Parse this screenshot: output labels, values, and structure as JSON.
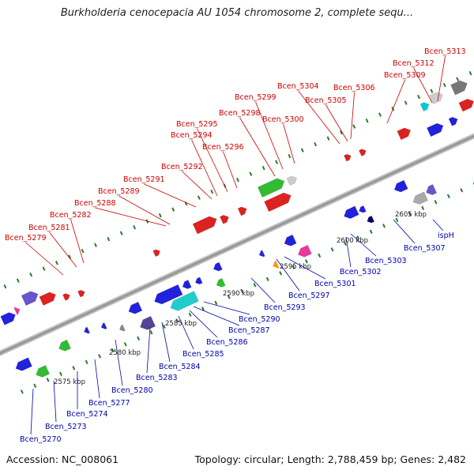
{
  "title": "Burkholderia cenocepacia AU 1054 chromosome 2, complete sequ...",
  "footer": {
    "accession": "Accession: NC_008061",
    "summary": "Topology: circular; Length: 2,788,459 bp; Genes: 2,482"
  },
  "colors": {
    "upper_label": "#cc0000",
    "lower_label": "#0000aa",
    "backbone": "#9a9a9a",
    "tick": "#2a7a2a"
  },
  "scale_labels": [
    "2575 kbp",
    "2580 kbp",
    "2585 kbp",
    "2590 kbp",
    "2595 kbp",
    "2600 kbp",
    "2605 kbp"
  ],
  "upper_labels": [
    "Bcen_5279",
    "Bcen_5281",
    "Bcen_5282",
    "Bcen_5288",
    "Bcen_5289",
    "Bcen_5291",
    "Bcen_5292",
    "Bcen_5294",
    "Bcen_5295",
    "Bcen_5296",
    "Bcen_5298",
    "Bcen_5299",
    "Bcen_5300",
    "Bcen_5304",
    "Bcen_5305",
    "Bcen_5306",
    "Bcen_5309",
    "Bcen_5312",
    "Bcen_5313"
  ],
  "lower_labels": [
    "Bcen_5270",
    "Bcen_5273",
    "Bcen_5274",
    "Bcen_5277",
    "Bcen_5280",
    "Bcen_5283",
    "Bcen_5284",
    "Bcen_5285",
    "Bcen_5286",
    "Bcen_5287",
    "Bcen_5290",
    "Bcen_5293",
    "Bcen_5297",
    "Bcen_5301",
    "Bcen_5302",
    "Bcen_5303",
    "Bcen_5307",
    "ispH"
  ]
}
